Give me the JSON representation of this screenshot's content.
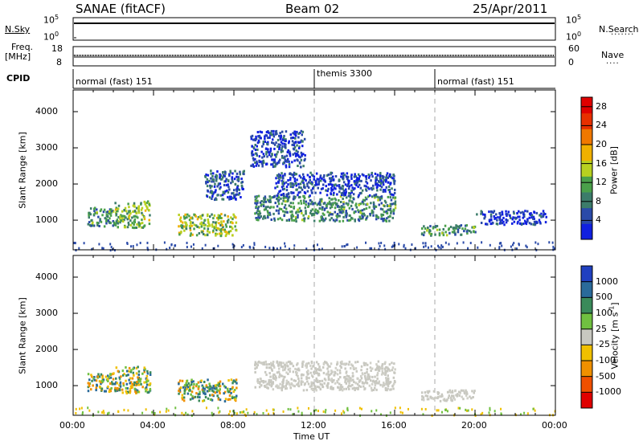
{
  "header": {
    "station": "SANAE (fitACF)",
    "beam": "Beam 02",
    "date": "25/Apr/2011"
  },
  "strip": {
    "nsky_label": "N.Sky",
    "nsky_top": "10^5",
    "nsky_bottom": "10^0",
    "nsearch_label": "N.Search",
    "nsearch_top": "10^5",
    "nsearch_bottom": "10^0",
    "freq_label": "Freq.",
    "freq_unit": "[MHz]",
    "freq_top": "18",
    "freq_bottom": "8",
    "nave_label": "Nave",
    "nave_top": "60",
    "nave_bottom": "0",
    "cpid_label": "CPID",
    "modes": [
      {
        "label": "normal (fast) 151",
        "start_h": 0
      },
      {
        "label": "themis 3300",
        "start_h": 12
      },
      {
        "label": "normal (fast) 151",
        "start_h": 18
      }
    ]
  },
  "chart_data": [
    {
      "type": "heatmap",
      "title": "",
      "ylabel": "Slant Range [km]",
      "xlabel": "",
      "x_range_hours": [
        0,
        24
      ],
      "ylim": [
        180,
        4600
      ],
      "yticks": [
        "1000",
        "2000",
        "3000",
        "4000"
      ],
      "colorbar": {
        "label": "Power [dB]",
        "ticks": [
          "4",
          "8",
          "12",
          "16",
          "20",
          "24",
          "28"
        ],
        "range": [
          0,
          30
        ],
        "colors": [
          "#1020e0",
          "#2a4aa8",
          "#3c7c6a",
          "#4aa04a",
          "#b8d020",
          "#f0b000",
          "#f07800",
          "#e83000",
          "#e00000"
        ]
      },
      "regions": [
        {
          "t": [
            0.7,
            2.0
          ],
          "r": [
            850,
            1400
          ],
          "v": 9
        },
        {
          "t": [
            2.0,
            3.8
          ],
          "r": [
            820,
            1550
          ],
          "v": 12
        },
        {
          "t": [
            5.2,
            8.1
          ],
          "r": [
            600,
            1200
          ],
          "v": 13
        },
        {
          "t": [
            6.5,
            8.5
          ],
          "r": [
            1600,
            2400
          ],
          "v": 5
        },
        {
          "t": [
            8.8,
            11.5
          ],
          "r": [
            2500,
            3500
          ],
          "v": 4
        },
        {
          "t": [
            9.0,
            16.0
          ],
          "r": [
            1000,
            1700
          ],
          "v": 9
        },
        {
          "t": [
            10.0,
            16.0
          ],
          "r": [
            1700,
            2350
          ],
          "v": 4
        },
        {
          "t": [
            17.3,
            20.0
          ],
          "r": [
            600,
            900
          ],
          "v": 10
        },
        {
          "t": [
            20.0,
            23.5
          ],
          "r": [
            900,
            1300
          ],
          "v": 3
        }
      ]
    },
    {
      "type": "heatmap",
      "title": "",
      "ylabel": "Slant Range [km]",
      "xlabel": "Time UT",
      "x_range_hours": [
        0,
        24
      ],
      "xticks": [
        "00:00",
        "04:00",
        "08:00",
        "12:00",
        "16:00",
        "20:00",
        "00:00"
      ],
      "ylim": [
        180,
        4600
      ],
      "yticks": [
        "1000",
        "2000",
        "3000",
        "4000"
      ],
      "colorbar": {
        "label": "Velocity [m s^-1]",
        "ticks": [
          "1000",
          "500",
          "100",
          "25",
          "-25",
          "-100",
          "-500",
          "-1000"
        ],
        "colors": [
          "#2040c0",
          "#2a6a9a",
          "#3a8a5a",
          "#70c040",
          "#c8c8c0",
          "#f0c000",
          "#f09000",
          "#f05000",
          "#e00000"
        ]
      },
      "regions": [
        {
          "t": [
            0.7,
            2.0
          ],
          "r": [
            850,
            1400
          ],
          "v": "green/orange"
        },
        {
          "t": [
            2.0,
            3.8
          ],
          "r": [
            820,
            1550
          ],
          "v": "green/orange"
        },
        {
          "t": [
            5.2,
            8.1
          ],
          "r": [
            600,
            1200
          ],
          "v": "orange/green"
        },
        {
          "t": [
            9.0,
            16.0
          ],
          "r": [
            900,
            1700
          ],
          "v": "grey"
        },
        {
          "t": [
            17.3,
            20.0
          ],
          "r": [
            600,
            900
          ],
          "v": "grey"
        }
      ]
    }
  ]
}
